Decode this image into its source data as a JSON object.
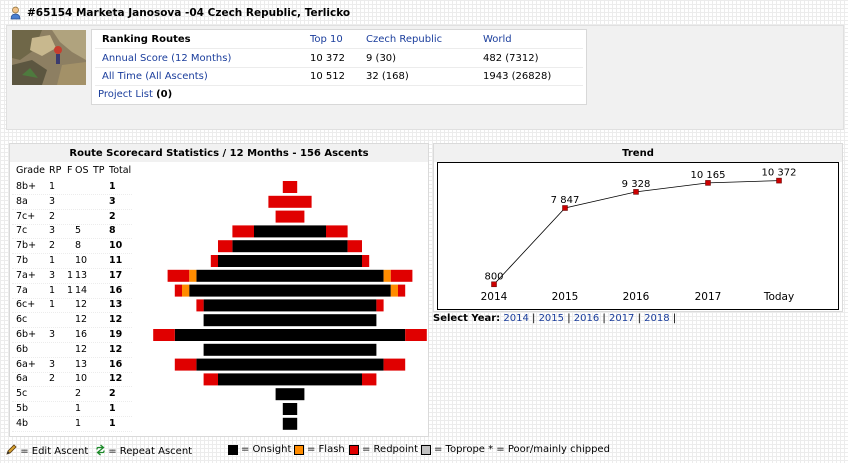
{
  "header": {
    "title": "#65154 Marketa Janosova -04 Czech Republic, Terlicko"
  },
  "ranking": {
    "title": "Ranking Routes",
    "columns": [
      "Top 10",
      "Czech Republic",
      "World"
    ],
    "rows": [
      {
        "label": "Annual Score (12 Months)",
        "top10": "10 372",
        "country": "9 (30)",
        "world": "482 (7312)"
      },
      {
        "label": "All Time (All Ascents)",
        "top10": "10 512",
        "country": "32 (168)",
        "world": "1943 (26828)"
      }
    ],
    "project_list_label": "Project List",
    "project_list_count": "(0)"
  },
  "scorecard": {
    "title": "Route Scorecard Statistics / 12 Months - 156 Ascents",
    "headers": {
      "grade": "Grade",
      "rp": "RP",
      "f": "F",
      "os": "OS",
      "tp": "TP",
      "total": "Total"
    },
    "rows": [
      {
        "grade": "8b+",
        "rp": "1",
        "f": "",
        "os": "",
        "tp": "",
        "total": "1"
      },
      {
        "grade": "8a",
        "rp": "3",
        "f": "",
        "os": "",
        "tp": "",
        "total": "3"
      },
      {
        "grade": "7c+",
        "rp": "2",
        "f": "",
        "os": "",
        "tp": "",
        "total": "2"
      },
      {
        "grade": "7c",
        "rp": "3",
        "f": "",
        "os": "5",
        "tp": "",
        "total": "8"
      },
      {
        "grade": "7b+",
        "rp": "2",
        "f": "",
        "os": "8",
        "tp": "",
        "total": "10"
      },
      {
        "grade": "7b",
        "rp": "1",
        "f": "",
        "os": "10",
        "tp": "",
        "total": "11"
      },
      {
        "grade": "7a+",
        "rp": "3",
        "f": "1",
        "os": "13",
        "tp": "",
        "total": "17"
      },
      {
        "grade": "7a",
        "rp": "1",
        "f": "1",
        "os": "14",
        "tp": "",
        "total": "16"
      },
      {
        "grade": "6c+",
        "rp": "1",
        "f": "",
        "os": "12",
        "tp": "",
        "total": "13"
      },
      {
        "grade": "6c",
        "rp": "",
        "f": "",
        "os": "12",
        "tp": "",
        "total": "12"
      },
      {
        "grade": "6b+",
        "rp": "3",
        "f": "",
        "os": "16",
        "tp": "",
        "total": "19"
      },
      {
        "grade": "6b",
        "rp": "",
        "f": "",
        "os": "12",
        "tp": "",
        "total": "12"
      },
      {
        "grade": "6a+",
        "rp": "3",
        "f": "",
        "os": "13",
        "tp": "",
        "total": "16"
      },
      {
        "grade": "6a",
        "rp": "2",
        "f": "",
        "os": "10",
        "tp": "",
        "total": "12"
      },
      {
        "grade": "5c",
        "rp": "",
        "f": "",
        "os": "2",
        "tp": "",
        "total": "2"
      },
      {
        "grade": "5b",
        "rp": "",
        "f": "",
        "os": "1",
        "tp": "",
        "total": "1"
      },
      {
        "grade": "4b",
        "rp": "",
        "f": "",
        "os": "1",
        "tp": "",
        "total": "1"
      }
    ]
  },
  "chart_data": [
    {
      "type": "bar",
      "orientation": "horizontal-centered",
      "categories": [
        "8b+",
        "8a",
        "7c+",
        "7c",
        "7b+",
        "7b",
        "7a+",
        "7a",
        "6c+",
        "6c",
        "6b+",
        "6b",
        "6a+",
        "6a",
        "5c",
        "5b",
        "4b"
      ],
      "series": [
        {
          "name": "Onsight",
          "color": "#000000",
          "values": [
            0,
            0,
            0,
            5,
            8,
            10,
            13,
            14,
            12,
            12,
            16,
            12,
            13,
            10,
            2,
            1,
            1
          ]
        },
        {
          "name": "Flash",
          "color": "#ff8c00",
          "values": [
            0,
            0,
            0,
            0,
            0,
            0,
            1,
            1,
            0,
            0,
            0,
            0,
            0,
            0,
            0,
            0,
            0
          ]
        },
        {
          "name": "Redpoint",
          "color": "#e00000",
          "values": [
            1,
            3,
            2,
            3,
            2,
            1,
            3,
            1,
            1,
            0,
            3,
            0,
            3,
            2,
            0,
            0,
            0
          ]
        },
        {
          "name": "Toprope",
          "color": "#c0c0c0",
          "values": [
            0,
            0,
            0,
            0,
            0,
            0,
            0,
            0,
            0,
            0,
            0,
            0,
            0,
            0,
            0,
            0,
            0
          ]
        }
      ]
    },
    {
      "type": "line",
      "title": "Trend",
      "x": [
        "2014",
        "2015",
        "2016",
        "2017",
        "Today"
      ],
      "values": [
        800,
        7847,
        9328,
        10165,
        10372
      ],
      "labels": [
        "800",
        "7 847",
        "9 328",
        "10 165",
        "10 372"
      ],
      "ylim": [
        0,
        12000
      ],
      "marker_color": "#cc0000"
    }
  ],
  "select_year": {
    "label": "Select Year:",
    "years": [
      "2014",
      "2015",
      "2016",
      "2017",
      "2018"
    ]
  },
  "legend": {
    "edit": "= Edit Ascent",
    "repeat": "= Repeat Ascent",
    "onsight": "= Onsight",
    "flash": "= Flash",
    "redpoint": "= Redpoint",
    "toprope": "= Toprope * = Poor/mainly chipped"
  },
  "colors": {
    "onsight": "#000000",
    "flash": "#ff8c00",
    "redpoint": "#e00000",
    "toprope": "#c0c0c0"
  }
}
